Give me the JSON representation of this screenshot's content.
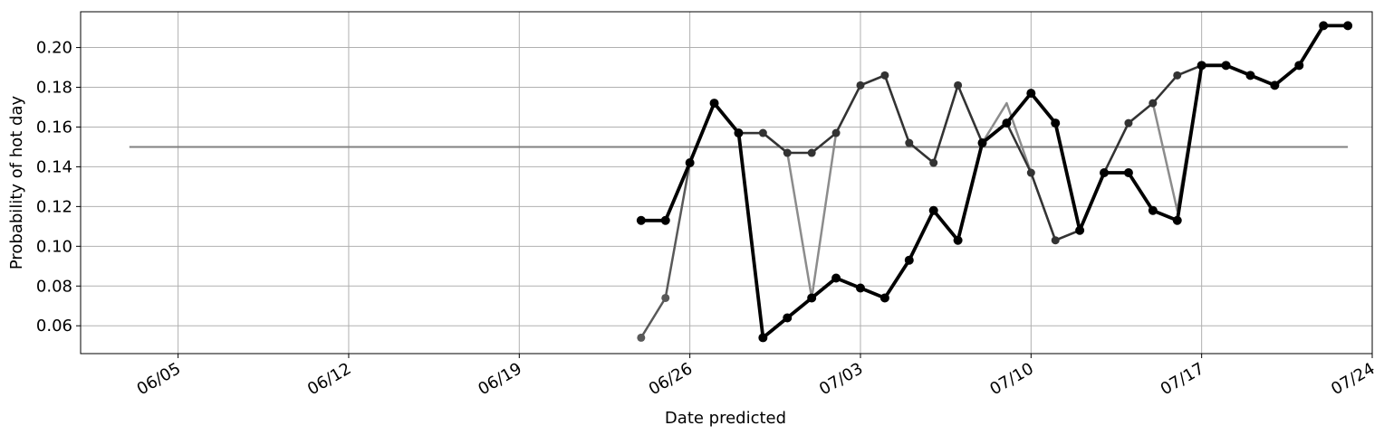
{
  "chart_data": {
    "type": "line",
    "xlabel": "Date predicted",
    "ylabel": "Probability of hot day",
    "xlim": [
      "2018-06-01",
      "2018-07-24"
    ],
    "ylim": [
      0.046,
      0.218
    ],
    "grid": true,
    "x_ticks": [
      {
        "date": "2018-06-05",
        "label": "06/05"
      },
      {
        "date": "2018-06-12",
        "label": "06/12"
      },
      {
        "date": "2018-06-19",
        "label": "06/19"
      },
      {
        "date": "2018-06-26",
        "label": "06/26"
      },
      {
        "date": "2018-07-03",
        "label": "07/03"
      },
      {
        "date": "2018-07-10",
        "label": "07/10"
      },
      {
        "date": "2018-07-17",
        "label": "07/17"
      },
      {
        "date": "2018-07-24",
        "label": "07/24"
      }
    ],
    "y_ticks": [
      {
        "value": 0.06,
        "label": "0.06"
      },
      {
        "value": 0.08,
        "label": "0.08"
      },
      {
        "value": 0.1,
        "label": "0.10"
      },
      {
        "value": 0.12,
        "label": "0.12"
      },
      {
        "value": 0.14,
        "label": "0.14"
      },
      {
        "value": 0.16,
        "label": "0.16"
      },
      {
        "value": 0.18,
        "label": "0.18"
      },
      {
        "value": 0.2,
        "label": "0.20"
      }
    ],
    "reference_line": {
      "x": [
        "2018-06-03",
        "2018-07-23"
      ],
      "y": 0.15,
      "color": "#808080"
    },
    "series": [
      {
        "color": "#8c8c8c",
        "markers": false,
        "weight": "thin",
        "x": [
          "2018-06-24",
          "2018-06-25",
          "2018-06-26",
          "2018-06-27",
          "2018-06-28",
          "2018-06-29",
          "2018-06-30",
          "2018-07-01",
          "2018-07-02",
          "2018-07-03",
          "2018-07-04",
          "2018-07-05",
          "2018-07-06",
          "2018-07-07",
          "2018-07-08",
          "2018-07-09",
          "2018-07-10",
          "2018-07-11",
          "2018-07-12",
          "2018-07-13",
          "2018-07-14",
          "2018-07-15",
          "2018-07-16",
          "2018-07-17"
        ],
        "y": [
          0.113,
          0.113,
          0.142,
          0.172,
          0.157,
          0.157,
          0.147,
          0.074,
          0.157,
          0.181,
          0.186,
          0.152,
          0.142,
          0.181,
          0.152,
          0.172,
          0.137,
          0.103,
          0.108,
          0.137,
          0.162,
          0.172,
          0.118,
          0.191
        ]
      },
      {
        "color": "#595959",
        "markers": true,
        "weight": "medium",
        "x": [
          "2018-06-24",
          "2018-06-25",
          "2018-06-26",
          "2018-06-27",
          "2018-06-28"
        ],
        "y": [
          0.054,
          0.074,
          0.142,
          0.172,
          0.157
        ]
      },
      {
        "color": "#333333",
        "markers": true,
        "weight": "medium",
        "x": [
          "2018-06-27",
          "2018-06-28",
          "2018-06-29",
          "2018-06-30",
          "2018-07-01",
          "2018-07-02",
          "2018-07-03",
          "2018-07-04",
          "2018-07-05",
          "2018-07-06",
          "2018-07-07",
          "2018-07-08",
          "2018-07-09",
          "2018-07-10",
          "2018-07-11",
          "2018-07-12",
          "2018-07-13",
          "2018-07-14",
          "2018-07-15",
          "2018-07-16",
          "2018-07-17"
        ],
        "y": [
          0.172,
          0.157,
          0.157,
          0.147,
          0.147,
          0.157,
          0.181,
          0.186,
          0.152,
          0.142,
          0.181,
          0.152,
          0.162,
          0.137,
          0.103,
          0.108,
          0.137,
          0.162,
          0.172,
          0.186,
          0.191
        ]
      },
      {
        "color": "#000000",
        "markers": true,
        "weight": "thick",
        "x": [
          "2018-06-24",
          "2018-06-25",
          "2018-06-26",
          "2018-06-27",
          "2018-06-28",
          "2018-06-29",
          "2018-06-30",
          "2018-07-01",
          "2018-07-02",
          "2018-07-03",
          "2018-07-04",
          "2018-07-05",
          "2018-07-06",
          "2018-07-07",
          "2018-07-08",
          "2018-07-09",
          "2018-07-10",
          "2018-07-11",
          "2018-07-12",
          "2018-07-13",
          "2018-07-14",
          "2018-07-15",
          "2018-07-16",
          "2018-07-17",
          "2018-07-18",
          "2018-07-19",
          "2018-07-20",
          "2018-07-21",
          "2018-07-22",
          "2018-07-23"
        ],
        "y": [
          0.113,
          0.113,
          0.142,
          0.172,
          0.157,
          0.054,
          0.064,
          0.074,
          0.084,
          0.079,
          0.074,
          0.093,
          0.118,
          0.103,
          0.152,
          0.162,
          0.177,
          0.162,
          0.108,
          0.137,
          0.137,
          0.118,
          0.113,
          0.191,
          0.191,
          0.186,
          0.181,
          0.191,
          0.211,
          0.211
        ]
      }
    ]
  }
}
